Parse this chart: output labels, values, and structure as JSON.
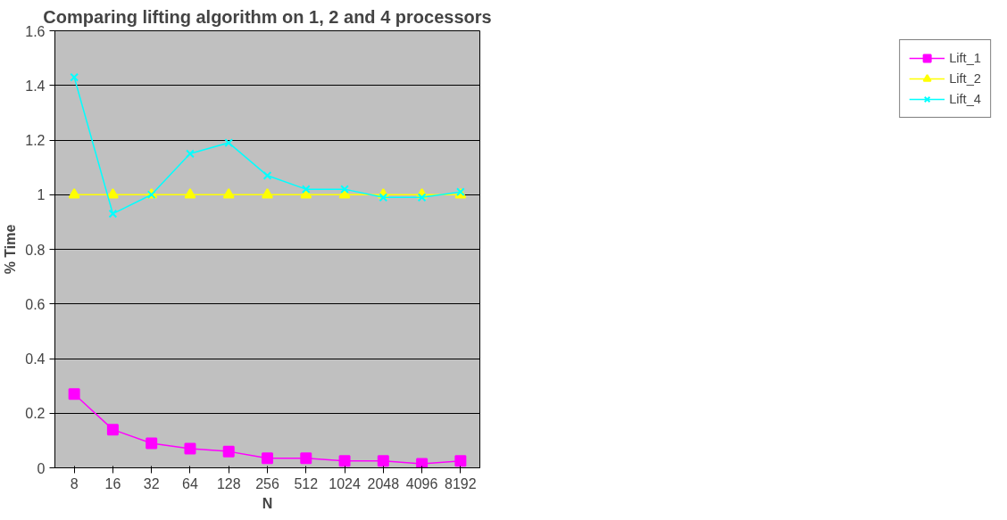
{
  "chart_data": {
    "type": "line",
    "title": "Comparing lifting algorithm on 1, 2 and 4 processors",
    "xlabel": "N",
    "ylabel": "% Time",
    "categories": [
      "8",
      "16",
      "32",
      "64",
      "128",
      "256",
      "512",
      "1024",
      "2048",
      "4096",
      "8192"
    ],
    "series": [
      {
        "name": "Lift_1",
        "color": "#ff00ff",
        "marker": "square",
        "values": [
          0.27,
          0.14,
          0.09,
          0.07,
          0.06,
          0.035,
          0.035,
          0.025,
          0.025,
          0.015,
          0.025
        ]
      },
      {
        "name": "Lift_2",
        "color": "#ffff00",
        "marker": "triangle",
        "values": [
          1,
          1,
          1,
          1,
          1,
          1,
          1,
          1,
          1,
          1,
          1
        ]
      },
      {
        "name": "Lift_4",
        "color": "#00ffff",
        "marker": "x",
        "values": [
          1.43,
          0.93,
          1.0,
          1.15,
          1.19,
          1.07,
          1.02,
          1.02,
          0.99,
          0.99,
          1.01
        ]
      }
    ],
    "ylim": [
      0,
      1.6
    ],
    "yticks": [
      0,
      0.2,
      0.4,
      0.6,
      0.8,
      1,
      1.2,
      1.4,
      1.6
    ],
    "grid": "y",
    "legend": "right"
  }
}
